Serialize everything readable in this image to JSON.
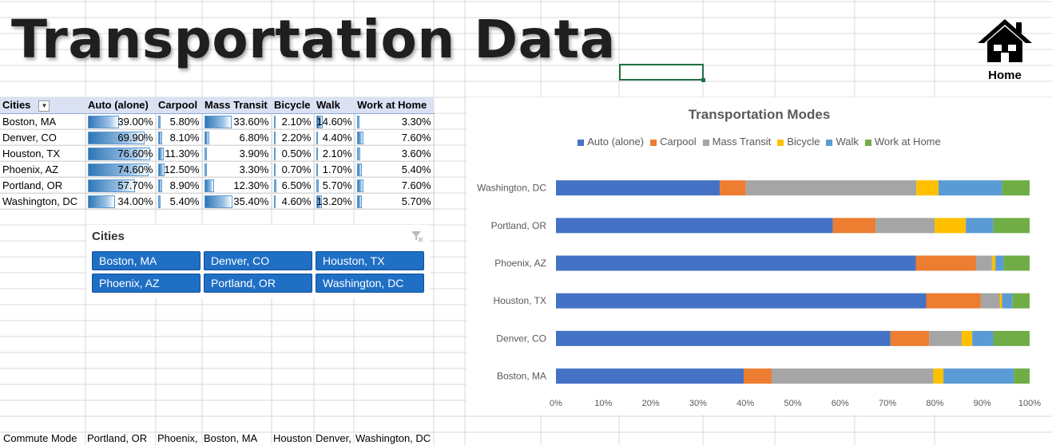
{
  "page": {
    "title": "Transportation Data",
    "home_label": "Home"
  },
  "table": {
    "headers": [
      "Cities",
      "Auto (alone)",
      "Carpool",
      "Mass Transit",
      "Bicycle",
      "Walk",
      "Work at Home"
    ],
    "rows": [
      {
        "city": "Boston, MA",
        "auto": "39.00%",
        "carpool": "5.80%",
        "transit": "33.60%",
        "bicycle": "2.10%",
        "walk": "14.60%",
        "home": "3.30%"
      },
      {
        "city": "Denver, CO",
        "auto": "69.90%",
        "carpool": "8.10%",
        "transit": "6.80%",
        "bicycle": "2.20%",
        "walk": "4.40%",
        "home": "7.60%"
      },
      {
        "city": "Houston, TX",
        "auto": "76.60%",
        "carpool": "11.30%",
        "transit": "3.90%",
        "bicycle": "0.50%",
        "walk": "2.10%",
        "home": "3.60%"
      },
      {
        "city": "Phoenix, AZ",
        "auto": "74.60%",
        "carpool": "12.50%",
        "transit": "3.30%",
        "bicycle": "0.70%",
        "walk": "1.70%",
        "home": "5.40%"
      },
      {
        "city": "Portland, OR",
        "auto": "57.70%",
        "carpool": "8.90%",
        "transit": "12.30%",
        "bicycle": "6.50%",
        "walk": "5.70%",
        "home": "7.60%"
      },
      {
        "city": "Washington, DC",
        "auto": "34.00%",
        "carpool": "5.40%",
        "transit": "35.40%",
        "bicycle": "4.60%",
        "walk": "13.20%",
        "home": "5.70%"
      }
    ]
  },
  "slicer": {
    "title": "Cities",
    "items": [
      "Boston, MA",
      "Denver, CO",
      "Houston, TX",
      "Phoenix, AZ",
      "Portland, OR",
      "Washington, DC"
    ]
  },
  "bottom_row": [
    "Commute Mode",
    "Portland, OR",
    "Phoenix, AZ",
    "Boston, MA",
    "Houston, TX",
    "Denver, CO",
    "Washington, DC"
  ],
  "colors": {
    "auto": "#4472c4",
    "carpool": "#ed7d31",
    "transit": "#a5a5a5",
    "bicycle": "#ffc000",
    "walk": "#5b9bd5",
    "home": "#70ad47"
  },
  "chart_data": {
    "type": "bar",
    "orientation": "horizontal",
    "stacked": "100%",
    "title": "Transportation Modes",
    "legend_position": "top",
    "categories": [
      "Washington, DC",
      "Portland, OR",
      "Phoenix, AZ",
      "Houston, TX",
      "Denver, CO",
      "Boston, MA"
    ],
    "series": [
      {
        "name": "Auto (alone)",
        "values": [
          34.0,
          57.7,
          74.6,
          76.6,
          69.9,
          39.0
        ]
      },
      {
        "name": "Carpool",
        "values": [
          5.4,
          8.9,
          12.5,
          11.3,
          8.1,
          5.8
        ]
      },
      {
        "name": "Mass Transit",
        "values": [
          35.4,
          12.3,
          3.3,
          3.9,
          6.8,
          33.6
        ]
      },
      {
        "name": "Bicycle",
        "values": [
          4.6,
          6.5,
          0.7,
          0.5,
          2.2,
          2.1
        ]
      },
      {
        "name": "Walk",
        "values": [
          13.2,
          5.7,
          1.7,
          2.1,
          4.4,
          14.6
        ]
      },
      {
        "name": "Work at Home",
        "values": [
          5.7,
          7.6,
          5.4,
          3.6,
          7.6,
          3.3
        ]
      }
    ],
    "x_ticks": [
      "0%",
      "10%",
      "20%",
      "30%",
      "40%",
      "50%",
      "60%",
      "70%",
      "80%",
      "90%",
      "100%"
    ],
    "xlim": [
      0,
      100
    ]
  }
}
